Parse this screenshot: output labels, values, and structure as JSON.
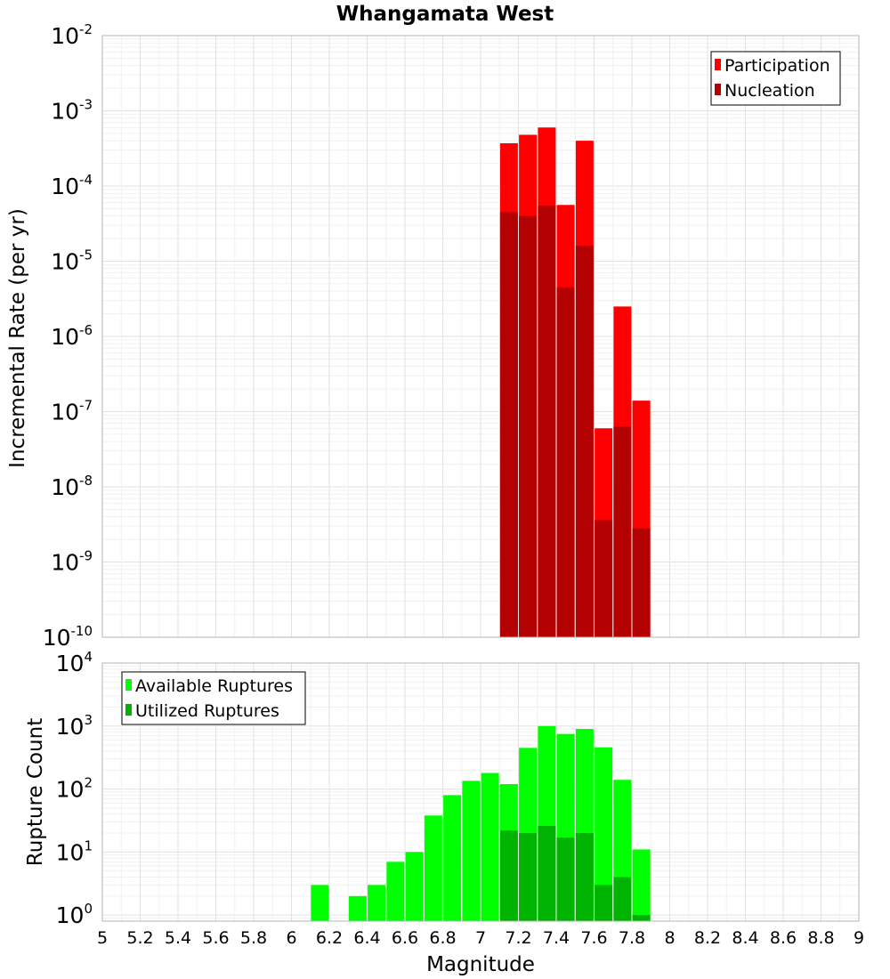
{
  "title": "Whangamata West",
  "xlabel": "Magnitude",
  "x_ticks": [
    "5",
    "5.2",
    "5.4",
    "5.6",
    "5.8",
    "6",
    "6.2",
    "6.4",
    "6.6",
    "6.8",
    "7",
    "7.2",
    "7.4",
    "7.6",
    "7.8",
    "8",
    "8.2",
    "8.4",
    "8.6",
    "8.8",
    "9"
  ],
  "colors": {
    "participation": "#ff0000",
    "nucleation": "#b30000",
    "available": "#00ff00",
    "utilized": "#00b300"
  },
  "chart_data": [
    {
      "type": "bar",
      "ylabel": "Incremental Rate (per yr)",
      "yscale": "log",
      "xlim": [
        5,
        9
      ],
      "ylim": [
        1e-10,
        0.01
      ],
      "y_ticks": [
        {
          "base": "10",
          "exp": "-10"
        },
        {
          "base": "10",
          "exp": "-9"
        },
        {
          "base": "10",
          "exp": "-8"
        },
        {
          "base": "10",
          "exp": "-7"
        },
        {
          "base": "10",
          "exp": "-6"
        },
        {
          "base": "10",
          "exp": "-5"
        },
        {
          "base": "10",
          "exp": "-4"
        },
        {
          "base": "10",
          "exp": "-3"
        },
        {
          "base": "10",
          "exp": "-2"
        }
      ],
      "grid": true,
      "legend_position": "top-right",
      "x": [
        7.15,
        7.25,
        7.35,
        7.45,
        7.55,
        7.65,
        7.75,
        7.85
      ],
      "series": [
        {
          "name": "Participation",
          "color_key": "participation",
          "values": [
            0.00037,
            0.00048,
            0.0006,
            5.6e-05,
            0.0004,
            6e-08,
            2.5e-06,
            1.4e-07
          ]
        },
        {
          "name": "Nucleation",
          "color_key": "nucleation",
          "values": [
            4.5e-05,
            4e-05,
            5.5e-05,
            4.5e-06,
            1.6e-05,
            3.6e-09,
            6.3e-08,
            2.8e-09
          ]
        }
      ]
    },
    {
      "type": "bar",
      "ylabel": "Rupture Count",
      "yscale": "log",
      "xlim": [
        5,
        9
      ],
      "ylim": [
        0.8,
        10000
      ],
      "y_ticks": [
        {
          "base": "10",
          "exp": "0"
        },
        {
          "base": "10",
          "exp": "1"
        },
        {
          "base": "10",
          "exp": "2"
        },
        {
          "base": "10",
          "exp": "3"
        },
        {
          "base": "10",
          "exp": "4"
        }
      ],
      "grid": true,
      "legend_position": "top-left",
      "x": [
        6.15,
        6.25,
        6.35,
        6.45,
        6.55,
        6.65,
        6.75,
        6.85,
        6.95,
        7.05,
        7.15,
        7.25,
        7.35,
        7.45,
        7.55,
        7.65,
        7.75,
        7.85
      ],
      "series": [
        {
          "name": "Available Ruptures",
          "color_key": "available",
          "values": [
            3,
            0,
            2,
            3,
            7,
            10,
            38,
            80,
            135,
            180,
            120,
            450,
            1000,
            750,
            900,
            460,
            140,
            11
          ]
        },
        {
          "name": "Utilized Ruptures",
          "color_key": "utilized",
          "values": [
            0,
            0,
            0,
            0,
            0,
            0,
            0,
            0,
            0,
            0,
            22,
            20,
            26,
            17,
            20,
            3,
            4,
            1
          ]
        }
      ]
    }
  ]
}
